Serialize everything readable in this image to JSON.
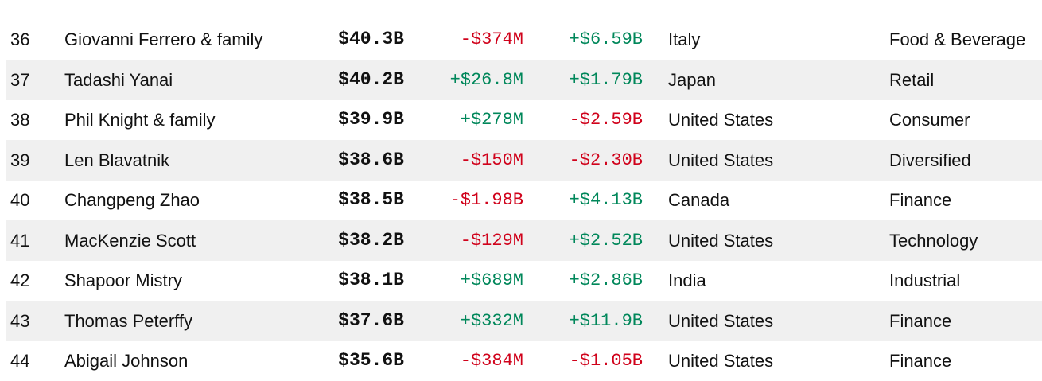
{
  "colors": {
    "negative": "#d0021b",
    "positive": "#00875a",
    "row_shade": "#f0f0f0",
    "text": "#111111"
  },
  "rows": [
    {
      "rank": "36",
      "name": "Giovanni Ferrero & family",
      "net_worth": "$40.3B",
      "change_1": "-$374M",
      "change_2": "+$6.59B",
      "country": "Italy",
      "industry": "Food & Beverage"
    },
    {
      "rank": "37",
      "name": "Tadashi Yanai",
      "net_worth": "$40.2B",
      "change_1": "+$26.8M",
      "change_2": "+$1.79B",
      "country": "Japan",
      "industry": "Retail"
    },
    {
      "rank": "38",
      "name": "Phil Knight & family",
      "net_worth": "$39.9B",
      "change_1": "+$278M",
      "change_2": "-$2.59B",
      "country": "United States",
      "industry": "Consumer"
    },
    {
      "rank": "39",
      "name": "Len Blavatnik",
      "net_worth": "$38.6B",
      "change_1": "-$150M",
      "change_2": "-$2.30B",
      "country": "United States",
      "industry": "Diversified"
    },
    {
      "rank": "40",
      "name": "Changpeng Zhao",
      "net_worth": "$38.5B",
      "change_1": "-$1.98B",
      "change_2": "+$4.13B",
      "country": "Canada",
      "industry": "Finance"
    },
    {
      "rank": "41",
      "name": "MacKenzie Scott",
      "net_worth": "$38.2B",
      "change_1": "-$129M",
      "change_2": "+$2.52B",
      "country": "United States",
      "industry": "Technology"
    },
    {
      "rank": "42",
      "name": "Shapoor Mistry",
      "net_worth": "$38.1B",
      "change_1": "+$689M",
      "change_2": "+$2.86B",
      "country": "India",
      "industry": "Industrial"
    },
    {
      "rank": "43",
      "name": "Thomas Peterffy",
      "net_worth": "$37.6B",
      "change_1": "+$332M",
      "change_2": "+$11.9B",
      "country": "United States",
      "industry": "Finance"
    },
    {
      "rank": "44",
      "name": "Abigail Johnson",
      "net_worth": "$35.6B",
      "change_1": "-$384M",
      "change_2": "-$1.05B",
      "country": "United States",
      "industry": "Finance"
    }
  ]
}
